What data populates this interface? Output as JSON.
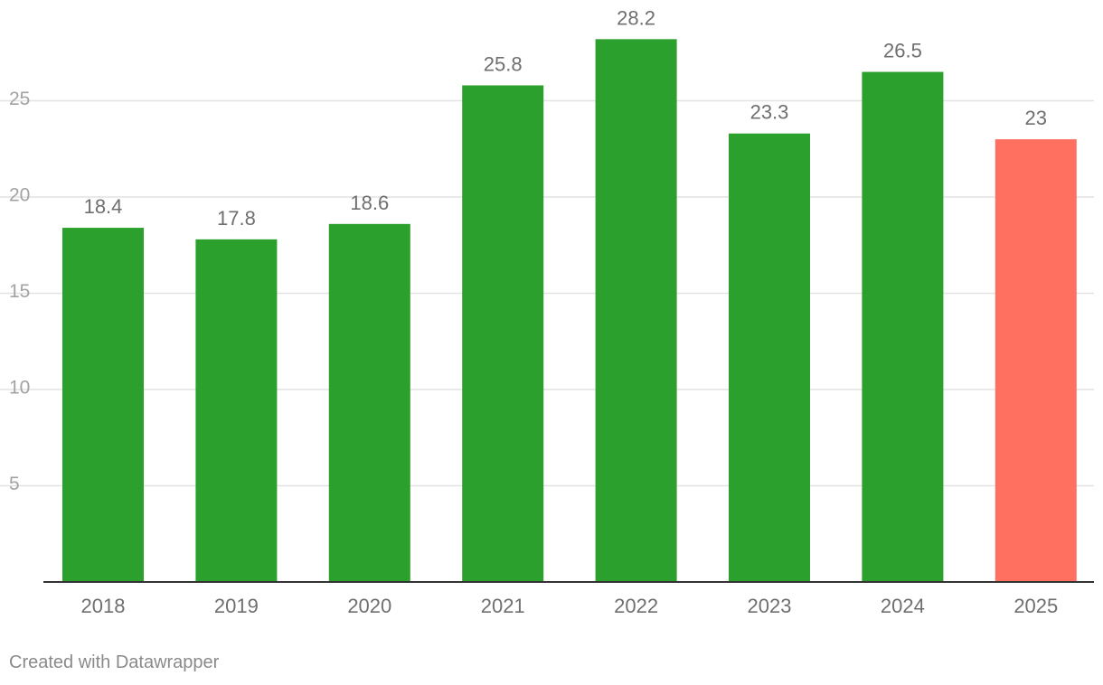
{
  "chart_data": {
    "type": "bar",
    "categories": [
      "2018",
      "2019",
      "2020",
      "2021",
      "2022",
      "2023",
      "2024",
      "2025"
    ],
    "values": [
      18.4,
      17.8,
      18.6,
      25.8,
      28.2,
      23.3,
      26.5,
      23
    ],
    "value_labels": [
      "18.4",
      "17.8",
      "18.6",
      "25.8",
      "28.2",
      "23.3",
      "26.5",
      "23"
    ],
    "bar_colors": [
      "#2ca02c",
      "#2ca02c",
      "#2ca02c",
      "#2ca02c",
      "#2ca02c",
      "#2ca02c",
      "#2ca02c",
      "#ff7060"
    ],
    "yticks": [
      5,
      10,
      15,
      20,
      25
    ],
    "ylim": [
      0,
      30
    ],
    "grid": true,
    "legend": "none",
    "title": "",
    "xlabel": "",
    "ylabel": ""
  },
  "footer": {
    "credit": "Created with Datawrapper"
  }
}
